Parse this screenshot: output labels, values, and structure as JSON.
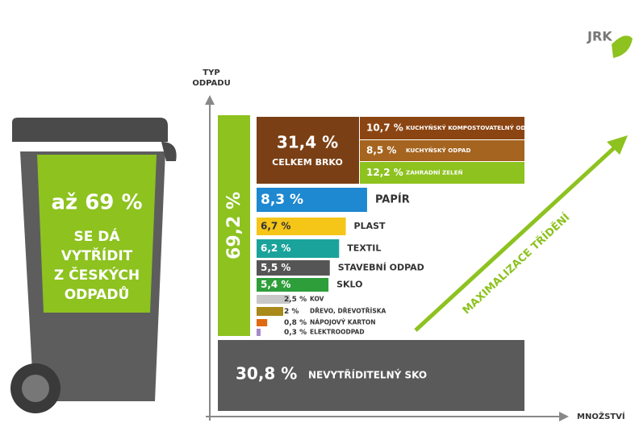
{
  "chart_data": {
    "type": "bar",
    "orientation": "horizontal",
    "logo": "JRK",
    "y_label": [
      "TYP",
      "ODPADU"
    ],
    "x_label": "MNOŽSTVÍ",
    "bin_text": [
      "až 69 %",
      "SE DÁ",
      "VYTŘÍDIT",
      "Z ČESKÝCH",
      "ODPADŮ"
    ],
    "arrow_label": "MAXIMALIZACE TŘÍDĚNÍ",
    "sorted": {
      "value": 69.2,
      "value_label": "69,2 %",
      "color": "#8dc21f"
    },
    "brko": {
      "value": 31.4,
      "value_label": "31,4 %",
      "label": "CELKEM BRKO",
      "color": "#7a3f14",
      "parts": [
        {
          "name": "KUCHYŇSKÝ KOMPOSTOVATELNÝ ODPAD",
          "value": 10.7,
          "value_label": "10,7 %",
          "color": "#8b4513"
        },
        {
          "name": "KUCHYŇSKÝ ODPAD",
          "value": 8.5,
          "value_label": "8,5 %",
          "color": "#a5641f"
        },
        {
          "name": "ZAHRADNÍ ZELEŇ",
          "value": 12.2,
          "value_label": "12,2 %",
          "color": "#8dc21f"
        }
      ]
    },
    "categories": [
      "PAPÍR",
      "PLAST",
      "TEXTIL",
      "STAVEBNÍ ODPAD",
      "SKLO",
      "KOV",
      "DŘEVO, DŘEVOTŘÍSKA",
      "NÁPOJOVÝ KARTON",
      "ELEKTROODPAD"
    ],
    "values": [
      8.3,
      6.7,
      6.2,
      5.5,
      5.4,
      2.5,
      2,
      0.8,
      0.3
    ],
    "value_labels": [
      "8,3 %",
      "6,7 %",
      "6,2 %",
      "5,5 %",
      "5,4 %",
      "2,5 %",
      "2 %",
      "0,8 %",
      "0,3 %"
    ],
    "colors": [
      "#1e88d0",
      "#f5c518",
      "#1aa39a",
      "#555555",
      "#2e9e3a",
      "#c8c8c8",
      "#a8891a",
      "#e06a10",
      "#a58ac8"
    ],
    "sko": {
      "value": 30.8,
      "value_label": "30,8 %",
      "label": "NEVYTŘÍDITELNÝ SKO",
      "color": "#5a5a5a"
    }
  }
}
